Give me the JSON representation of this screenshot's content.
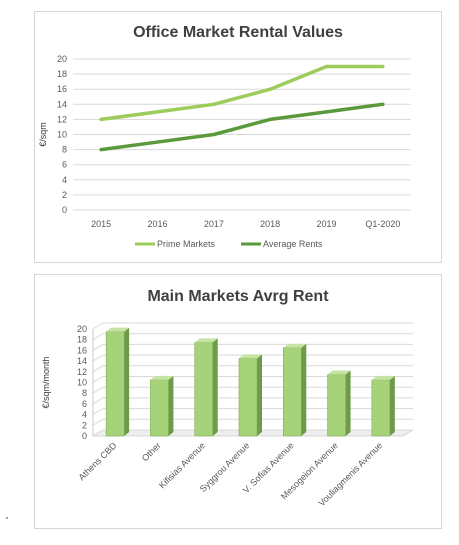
{
  "charts": [
    {
      "type": "line",
      "title": "Office Market Rental Values",
      "xlabel": "",
      "ylabel": "€/sqm",
      "categories": [
        "2015",
        "2016",
        "2017",
        "2018",
        "2019",
        "Q1-2020"
      ],
      "ylim": [
        0,
        20
      ],
      "yticks": [
        0,
        2,
        4,
        6,
        8,
        10,
        12,
        14,
        16,
        18,
        20
      ],
      "grid": true,
      "legend_position": "bottom",
      "series": [
        {
          "name": "Prime Markets",
          "values": [
            12,
            13,
            14,
            16,
            19,
            19
          ],
          "color": "#9ccc5c"
        },
        {
          "name": "Average Rents",
          "values": [
            8,
            9,
            10,
            12,
            13,
            14
          ],
          "color": "#5a9a3c"
        }
      ]
    },
    {
      "type": "bar",
      "title": "Main Markets Avrg Rent",
      "xlabel": "",
      "ylabel": "€/sqm/month",
      "categories": [
        "Athens CBD",
        "Other",
        "Kifisias Avenue",
        "Syggrou Avenue",
        "V. Sofias Avenue",
        "Mesogeion Avenue",
        "Vouliagmenis Avenue"
      ],
      "values": [
        19.5,
        10.5,
        17.5,
        14.5,
        16.5,
        11.5,
        10.5
      ],
      "ylim": [
        0,
        20
      ],
      "yticks": [
        0,
        2,
        4,
        6,
        8,
        10,
        12,
        14,
        16,
        18,
        20
      ],
      "grid": true,
      "color": "#a6d37a"
    }
  ]
}
